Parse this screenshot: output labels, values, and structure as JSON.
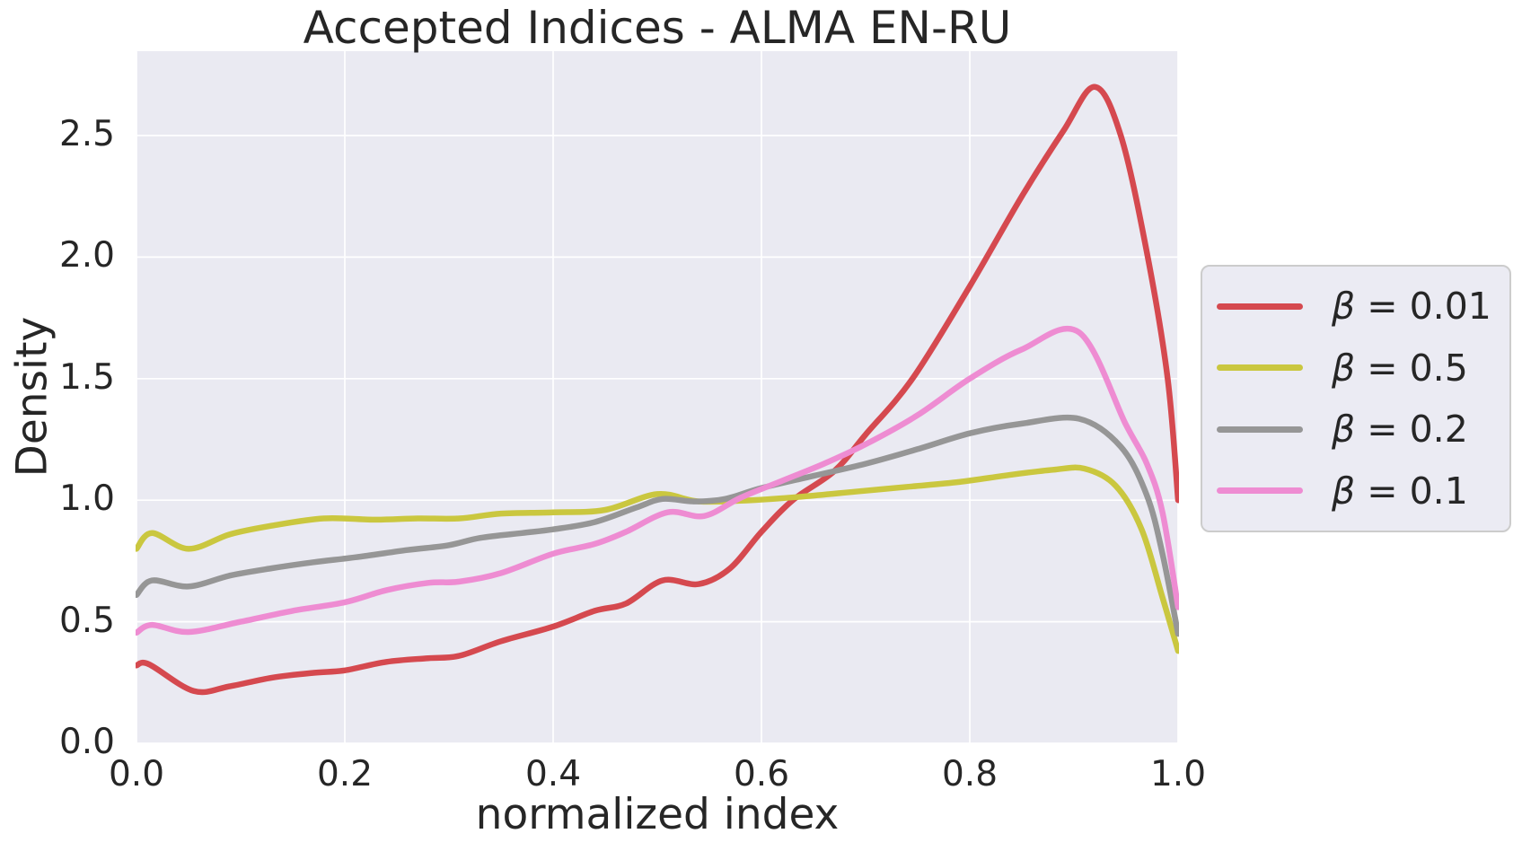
{
  "chart_data": {
    "type": "line",
    "title": "Accepted Indices - ALMA EN-RU",
    "xlabel": "normalized index",
    "ylabel": "Density",
    "xlim": [
      0.0,
      1.0
    ],
    "ylim": [
      0.0,
      2.85
    ],
    "grid": true,
    "legend_position": "right",
    "x_ticks": [
      0.0,
      0.2,
      0.4,
      0.6,
      0.8,
      1.0
    ],
    "y_ticks": [
      0.0,
      0.5,
      1.0,
      1.5,
      2.0,
      2.5
    ],
    "x_tick_labels": [
      "0.0",
      "0.2",
      "0.4",
      "0.6",
      "0.8",
      "1.0"
    ],
    "y_tick_labels": [
      "0.0",
      "0.5",
      "1.0",
      "1.5",
      "2.0",
      "2.5"
    ],
    "series": [
      {
        "label": "β = 0.01",
        "color": "#d5494f",
        "points": [
          [
            0.0,
            0.32
          ],
          [
            0.012,
            0.325
          ],
          [
            0.055,
            0.215
          ],
          [
            0.09,
            0.235
          ],
          [
            0.13,
            0.27
          ],
          [
            0.17,
            0.29
          ],
          [
            0.2,
            0.3
          ],
          [
            0.24,
            0.335
          ],
          [
            0.28,
            0.35
          ],
          [
            0.31,
            0.36
          ],
          [
            0.35,
            0.42
          ],
          [
            0.4,
            0.48
          ],
          [
            0.44,
            0.545
          ],
          [
            0.47,
            0.575
          ],
          [
            0.505,
            0.67
          ],
          [
            0.54,
            0.655
          ],
          [
            0.57,
            0.72
          ],
          [
            0.6,
            0.87
          ],
          [
            0.63,
            1.0
          ],
          [
            0.67,
            1.12
          ],
          [
            0.7,
            1.27
          ],
          [
            0.745,
            1.5
          ],
          [
            0.8,
            1.88
          ],
          [
            0.85,
            2.25
          ],
          [
            0.89,
            2.52
          ],
          [
            0.92,
            2.7
          ],
          [
            0.945,
            2.5
          ],
          [
            0.97,
            2.02
          ],
          [
            0.99,
            1.5
          ],
          [
            1.0,
            1.0
          ]
        ]
      },
      {
        "label": "β = 0.5",
        "color": "#cac73f",
        "points": [
          [
            0.0,
            0.8
          ],
          [
            0.015,
            0.865
          ],
          [
            0.05,
            0.8
          ],
          [
            0.09,
            0.86
          ],
          [
            0.13,
            0.895
          ],
          [
            0.18,
            0.925
          ],
          [
            0.23,
            0.92
          ],
          [
            0.27,
            0.925
          ],
          [
            0.31,
            0.925
          ],
          [
            0.35,
            0.945
          ],
          [
            0.4,
            0.95
          ],
          [
            0.45,
            0.96
          ],
          [
            0.5,
            1.025
          ],
          [
            0.54,
            0.995
          ],
          [
            0.59,
            1.0
          ],
          [
            0.64,
            1.015
          ],
          [
            0.69,
            1.035
          ],
          [
            0.74,
            1.055
          ],
          [
            0.79,
            1.075
          ],
          [
            0.84,
            1.105
          ],
          [
            0.88,
            1.125
          ],
          [
            0.91,
            1.13
          ],
          [
            0.94,
            1.06
          ],
          [
            0.965,
            0.88
          ],
          [
            0.985,
            0.6
          ],
          [
            1.0,
            0.38
          ]
        ]
      },
      {
        "label": "β = 0.2",
        "color": "#969696",
        "points": [
          [
            0.0,
            0.61
          ],
          [
            0.015,
            0.67
          ],
          [
            0.05,
            0.645
          ],
          [
            0.09,
            0.69
          ],
          [
            0.13,
            0.72
          ],
          [
            0.17,
            0.745
          ],
          [
            0.21,
            0.765
          ],
          [
            0.26,
            0.795
          ],
          [
            0.3,
            0.815
          ],
          [
            0.33,
            0.845
          ],
          [
            0.37,
            0.865
          ],
          [
            0.4,
            0.88
          ],
          [
            0.44,
            0.91
          ],
          [
            0.48,
            0.97
          ],
          [
            0.505,
            1.005
          ],
          [
            0.535,
            0.995
          ],
          [
            0.565,
            1.005
          ],
          [
            0.6,
            1.05
          ],
          [
            0.65,
            1.1
          ],
          [
            0.7,
            1.15
          ],
          [
            0.75,
            1.21
          ],
          [
            0.8,
            1.275
          ],
          [
            0.85,
            1.315
          ],
          [
            0.905,
            1.335
          ],
          [
            0.945,
            1.22
          ],
          [
            0.97,
            1.02
          ],
          [
            0.985,
            0.78
          ],
          [
            1.0,
            0.45
          ]
        ]
      },
      {
        "label": "β = 0.1",
        "color": "#ee8cd2",
        "points": [
          [
            0.0,
            0.455
          ],
          [
            0.015,
            0.487
          ],
          [
            0.05,
            0.458
          ],
          [
            0.1,
            0.5
          ],
          [
            0.15,
            0.545
          ],
          [
            0.2,
            0.58
          ],
          [
            0.24,
            0.63
          ],
          [
            0.28,
            0.66
          ],
          [
            0.31,
            0.665
          ],
          [
            0.35,
            0.7
          ],
          [
            0.4,
            0.78
          ],
          [
            0.44,
            0.82
          ],
          [
            0.47,
            0.87
          ],
          [
            0.51,
            0.95
          ],
          [
            0.545,
            0.935
          ],
          [
            0.58,
            1.01
          ],
          [
            0.62,
            1.08
          ],
          [
            0.66,
            1.15
          ],
          [
            0.7,
            1.23
          ],
          [
            0.75,
            1.35
          ],
          [
            0.8,
            1.5
          ],
          [
            0.85,
            1.62
          ],
          [
            0.905,
            1.69
          ],
          [
            0.95,
            1.31
          ],
          [
            0.97,
            1.15
          ],
          [
            0.985,
            0.95
          ],
          [
            1.0,
            0.56
          ]
        ]
      }
    ]
  },
  "styling": {
    "plot_bg": "#eaeaf2",
    "grid_color": "#ffffff",
    "text_color": "#262626",
    "legend_bg": "#ebebf3",
    "legend_border": "#cccccc"
  }
}
